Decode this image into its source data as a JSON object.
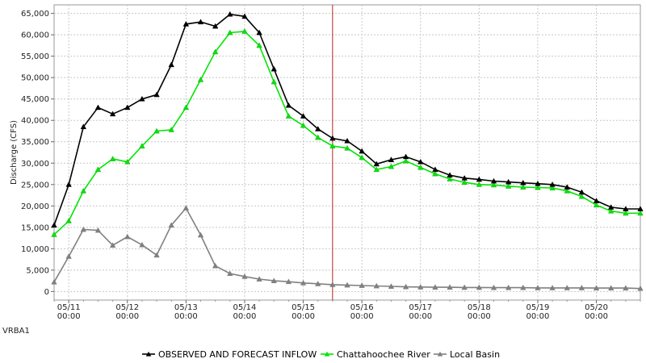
{
  "station_id": "VRBA1",
  "chart_data": {
    "type": "line",
    "ylabel": "Discharge (CFS)",
    "ylim": [
      -2000,
      67000
    ],
    "y_ticks": [
      0,
      5000,
      10000,
      15000,
      20000,
      25000,
      30000,
      35000,
      40000,
      45000,
      50000,
      55000,
      60000,
      65000
    ],
    "y_tick_labels": [
      "0",
      "5,000",
      "10,000",
      "15,000",
      "20,000",
      "25,000",
      "30,000",
      "35,000",
      "40,000",
      "45,000",
      "50,000",
      "55,000",
      "60,000",
      "65,000"
    ],
    "x_start": "05/10 18:00",
    "x_step_hours": 6,
    "x_tick_labels": [
      {
        "date": "05/11",
        "time": "00:00"
      },
      {
        "date": "05/12",
        "time": "00:00"
      },
      {
        "date": "05/13",
        "time": "00:00"
      },
      {
        "date": "05/14",
        "time": "00:00"
      },
      {
        "date": "05/15",
        "time": "00:00"
      },
      {
        "date": "05/16",
        "time": "00:00"
      },
      {
        "date": "05/17",
        "time": "00:00"
      },
      {
        "date": "05/18",
        "time": "00:00"
      },
      {
        "date": "05/19",
        "time": "00:00"
      },
      {
        "date": "05/20",
        "time": "00:00"
      }
    ],
    "forecast_marker": "05/15 12:00",
    "grid": true,
    "legend_position": "bottom",
    "series": [
      {
        "name": "OBSERVED AND FORECAST INFLOW",
        "color": "#000000",
        "values": [
          15500,
          25000,
          38500,
          43000,
          41500,
          43000,
          45000,
          46000,
          53000,
          62500,
          63000,
          62000,
          64800,
          64300,
          60500,
          52000,
          43500,
          41000,
          38000,
          35800,
          35200,
          32800,
          29800,
          30800,
          31500,
          30300,
          28500,
          27200,
          26500,
          26200,
          25800,
          25600,
          25400,
          25200,
          25000,
          24400,
          23200,
          21200,
          19700,
          19300,
          19300
        ]
      },
      {
        "name": "Chattahoochee River",
        "color": "#00e600",
        "values": [
          13300,
          16500,
          23500,
          28500,
          31000,
          30300,
          34000,
          37500,
          37800,
          43000,
          49500,
          56000,
          60500,
          60800,
          57500,
          49000,
          41000,
          38800,
          36000,
          34000,
          33500,
          31300,
          28500,
          29200,
          30500,
          29000,
          27500,
          26300,
          25500,
          25000,
          24900,
          24600,
          24400,
          24300,
          24200,
          23500,
          22200,
          20200,
          18800,
          18300,
          18300
        ]
      },
      {
        "name": "Local Basin",
        "color": "#808080",
        "values": [
          2200,
          8200,
          14500,
          14300,
          10800,
          12800,
          10900,
          8500,
          15500,
          19500,
          13200,
          6000,
          4200,
          3500,
          2900,
          2500,
          2300,
          2000,
          1800,
          1600,
          1500,
          1400,
          1300,
          1200,
          1100,
          1050,
          1000,
          1000,
          950,
          950,
          900,
          900,
          900,
          850,
          850,
          850,
          850,
          800,
          800,
          800,
          700
        ]
      }
    ]
  }
}
